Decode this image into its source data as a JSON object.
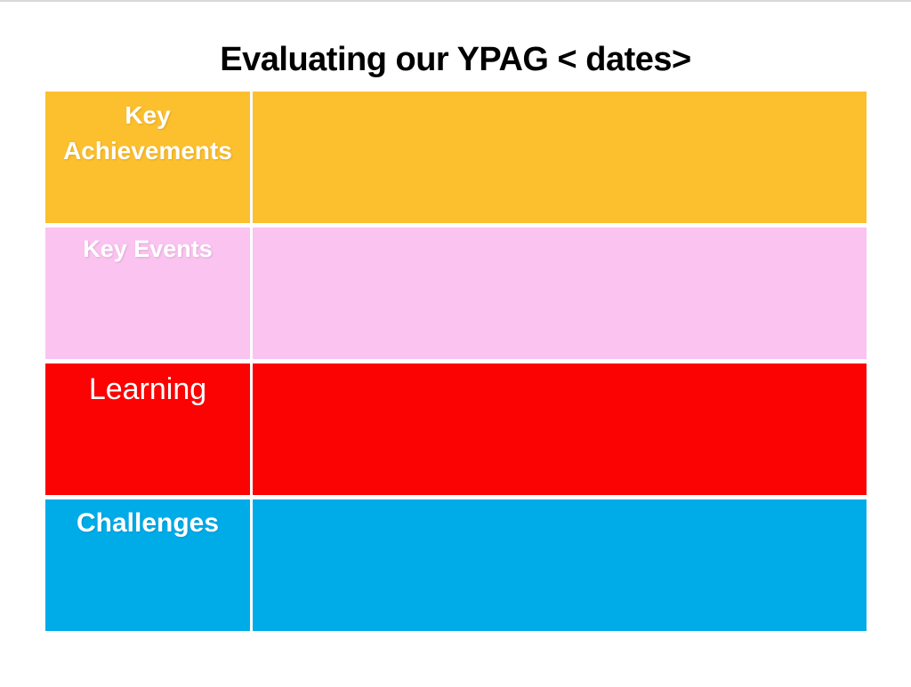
{
  "slide": {
    "title": "Evaluating our YPAG < dates>",
    "table": {
      "rows": [
        {
          "label": "Key Achievements",
          "bg": "#FCBF2D"
        },
        {
          "label": "Key Events",
          "bg": "#FAC3F0"
        },
        {
          "label": "Learning",
          "bg": "#FB0303"
        },
        {
          "label": "Challenges",
          "bg": "#00ACE8"
        }
      ]
    }
  },
  "colors": {
    "background": "#FFFFFF",
    "title_text": "#000000",
    "label_text": "#FFFFFF",
    "row_divider": "#FFFFFF",
    "top_edge_line": "#D9D9D9"
  }
}
